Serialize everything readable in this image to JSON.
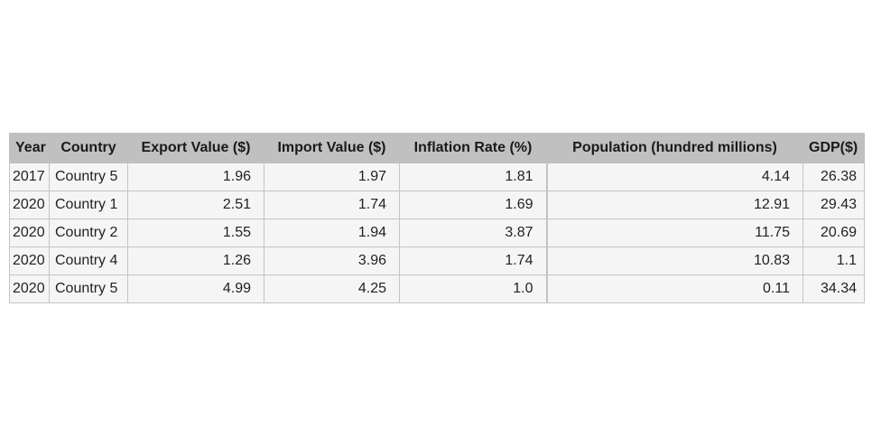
{
  "chart_data": {
    "type": "table",
    "columns": [
      "Year",
      "Country",
      "Export Value ($)",
      "Import Value ($)",
      "Inflation Rate (%)",
      "Population (hundred millions)",
      "GDP($)"
    ],
    "rows": [
      [
        "2017",
        "Country 5",
        "1.96",
        "1.97",
        "1.81",
        "4.14",
        "26.38"
      ],
      [
        "2020",
        "Country 1",
        "2.51",
        "1.74",
        "1.69",
        "12.91",
        "29.43"
      ],
      [
        "2020",
        "Country 2",
        "1.55",
        "1.94",
        "3.87",
        "11.75",
        "20.69"
      ],
      [
        "2020",
        "Country 4",
        "1.26",
        "3.96",
        "1.74",
        "10.83",
        "1.1"
      ],
      [
        "2020",
        "Country 5",
        "4.99",
        "4.25",
        "1.0",
        "0.11",
        "34.34"
      ]
    ],
    "header_color": "#c0c0c0",
    "cell_color": "#f5f5f5",
    "border_color": "#c4c4c4"
  }
}
